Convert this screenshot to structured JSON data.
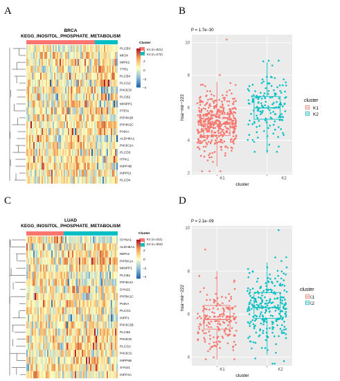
{
  "colors": {
    "k1": "#F8766D",
    "k2": "#00BFC4",
    "heat_high": "#B2182B",
    "heat_mid": "#FFFFBF",
    "heat_low": "#2166AC",
    "panel_bg": "#ebebeb"
  },
  "panels": [
    {
      "letter": "A",
      "title_line1": "BRCA",
      "title_line2": "KEGG_INOSITOL_PHOSPHATE_METABOLISM",
      "genes": [
        "PLCB3",
        "MIOX",
        "IMPK2",
        "TTR1",
        "PLCB4",
        "PLCG2",
        "PIK3CD",
        "PLCB2",
        "MINPP1",
        "PTEN",
        "PIP4K2B",
        "PIP4K2C",
        "PI4KA",
        "ALDH6A1",
        "PIK3C2A",
        "PLCD3",
        "ITPK1",
        "INPP4B",
        "INPP5J",
        "PLCD4"
      ],
      "legend_title": "Cluster",
      "legend_items": [
        "K1 (n=821)",
        "K2 (n=272)"
      ],
      "scale_ticks": [
        "4",
        "2",
        "0",
        "−2",
        "−4"
      ],
      "k1_fraction": 0.75
    },
    {
      "letter": "C",
      "title_line1": "LUAD",
      "title_line2": "KEGG_INOSITOL_PHOSPHATE_METABOLISM",
      "genes": [
        "ISYNA1",
        "ALDH6A1",
        "IMPA2",
        "PIP5K1A",
        "MINPP1",
        "PLCB1",
        "PIP4K2A",
        "SYNJ2",
        "PIP5K1C",
        "PI4KA",
        "PLCG1",
        "INPP1",
        "PIK3C2B",
        "PLCB2",
        "PIK3CD",
        "PLCG2",
        "PIK3CG",
        "INPP5B",
        "SYNJ1",
        "INPP4A"
      ],
      "legend_title": "Cluster",
      "legend_items": [
        "K1 (n=211)",
        "K2 (n=304)"
      ],
      "scale_ticks": [
        "4",
        "2",
        "0",
        "−2",
        "−4"
      ],
      "k1_fraction": 0.41
    }
  ],
  "chart_data": [
    {
      "panel": "B",
      "type": "box",
      "p_label": "P = 1.7e−30",
      "xlabel": "cluster",
      "ylabel": "hsa−mir−222",
      "categories": [
        "K1",
        "K2"
      ],
      "ylim": [
        1.9,
        10.5
      ],
      "yticks": [
        2,
        4,
        6,
        8,
        10
      ],
      "legend_title": "cluster",
      "series": [
        {
          "name": "K1",
          "q1": 4.3,
          "median": 5.0,
          "q3": 5.6,
          "whisker_low": 2.4,
          "whisker_high": 7.6,
          "n_points": 420,
          "min_point": 2.1,
          "max_point": 10.2
        },
        {
          "name": "K2",
          "q1": 5.3,
          "median": 6.0,
          "q3": 6.7,
          "whisker_low": 3.2,
          "whisker_high": 8.8,
          "n_points": 150,
          "min_point": 3.3,
          "max_point": 8.9
        }
      ]
    },
    {
      "panel": "D",
      "type": "box",
      "p_label": "P = 2.1e−09",
      "xlabel": "cluster",
      "ylabel": "hsa−mir−222",
      "categories": [
        "K1",
        "K2"
      ],
      "ylim": [
        3.6,
        10.1
      ],
      "yticks": [
        4,
        6,
        8,
        10
      ],
      "legend_title": "cluster",
      "series": [
        {
          "name": "K1",
          "q1": 5.3,
          "median": 5.75,
          "q3": 6.4,
          "whisker_low": 3.9,
          "whisker_high": 8.0,
          "n_points": 180,
          "min_point": 3.9,
          "max_point": 9.0
        },
        {
          "name": "K2",
          "q1": 5.8,
          "median": 6.3,
          "q3": 7.0,
          "whisker_low": 4.1,
          "whisker_high": 8.4,
          "n_points": 260,
          "min_point": 3.7,
          "max_point": 9.9
        }
      ]
    }
  ]
}
